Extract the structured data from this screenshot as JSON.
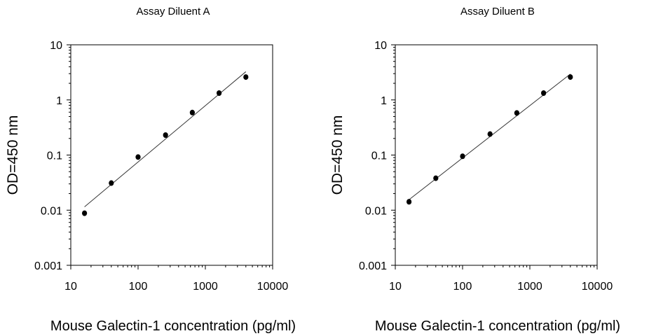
{
  "chart_data": [
    {
      "type": "scatter",
      "title": "Assay Diluent A",
      "xlabel": "Mouse Galectin-1 concentration (pg/ml)",
      "ylabel": "OD=450 nm",
      "xscale": "log",
      "yscale": "log",
      "xlim": [
        10,
        10000
      ],
      "ylim": [
        0.001,
        10
      ],
      "xticks": [
        "10",
        "100",
        "1000",
        "10000"
      ],
      "yticks": [
        "0.001",
        "0.01",
        "0.1",
        "1",
        "10"
      ],
      "grid": false,
      "points": {
        "x": [
          16,
          40,
          100,
          256,
          640,
          1600,
          4000
        ],
        "y": [
          0.0088,
          0.031,
          0.092,
          0.23,
          0.59,
          1.33,
          2.6
        ]
      },
      "fit_line": {
        "x": [
          16,
          4000
        ],
        "y": [
          0.0115,
          3.25
        ]
      }
    },
    {
      "type": "scatter",
      "title": "Assay Diluent B",
      "xlabel": "Mouse Galectin-1 concentration (pg/ml)",
      "ylabel": "OD=450 nm",
      "xscale": "log",
      "yscale": "log",
      "xlim": [
        10,
        10000
      ],
      "ylim": [
        0.001,
        10
      ],
      "xticks": [
        "10",
        "100",
        "1000",
        "10000"
      ],
      "yticks": [
        "0.001",
        "0.01",
        "0.1",
        "1",
        "10"
      ],
      "grid": false,
      "points": {
        "x": [
          16,
          40,
          100,
          256,
          640,
          1600,
          4000
        ],
        "y": [
          0.0142,
          0.038,
          0.095,
          0.24,
          0.58,
          1.33,
          2.6
        ]
      },
      "fit_line": {
        "x": [
          16,
          4000
        ],
        "y": [
          0.0155,
          2.95
        ]
      }
    }
  ]
}
